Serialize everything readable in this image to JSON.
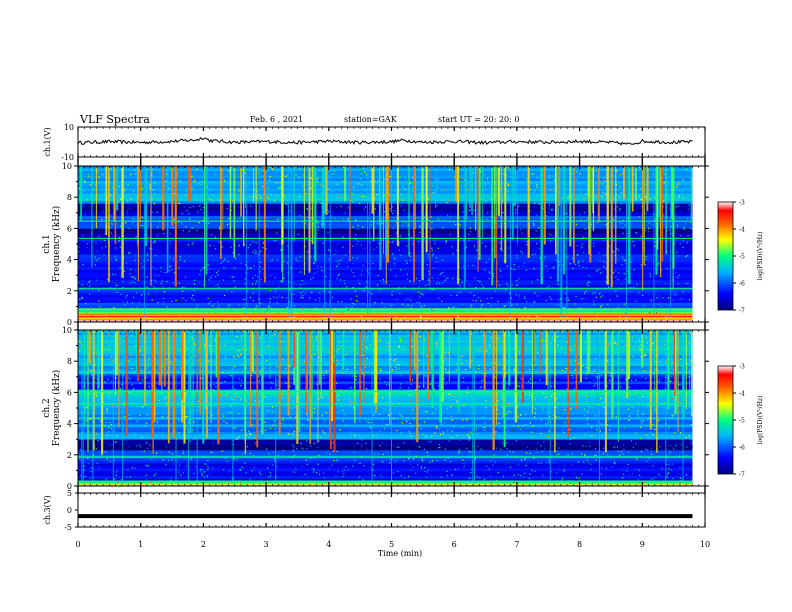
{
  "header": {
    "title": "VLF Spectra",
    "date": "Feb. 6 , 2021",
    "station": "station=GAK",
    "start": "start UT =  20: 20: 0"
  },
  "chart_data": [
    {
      "type": "line",
      "panel": "ch1-waveform",
      "ylabel": "ch.1(V)",
      "ylim": [
        -10,
        10
      ],
      "yticks": [
        "10",
        "-10"
      ],
      "xlim": [
        0,
        10
      ],
      "series": [
        {
          "x": [
            0,
            0.5,
            1,
            1.5,
            1.9,
            2.0,
            2.1,
            2.5,
            3,
            3.5,
            4,
            4.5,
            5,
            5.2,
            5.5,
            6,
            6.5,
            7,
            7.5,
            8,
            8.5,
            8.8,
            9,
            9.5,
            9.8
          ],
          "values": [
            -0.5,
            0.2,
            -0.3,
            0.4,
            1.5,
            3.0,
            1.0,
            -0.2,
            0.3,
            -0.4,
            0.5,
            -0.3,
            0.2,
            1.2,
            -0.2,
            0.4,
            -0.5,
            0.3,
            -0.2,
            0.4,
            -0.3,
            -1.5,
            0.5,
            -0.2,
            0.1
          ]
        }
      ]
    },
    {
      "type": "heatmap",
      "panel": "ch1-spectrogram",
      "ylabel_top": "ch.1",
      "ylabel": "Frequency (kHz)",
      "ylim": [
        0,
        10
      ],
      "yticks": [
        "0",
        "2",
        "4",
        "6",
        "8",
        "10"
      ],
      "xlim": [
        0,
        10
      ],
      "colorbar": {
        "label": "log(PSD)(V²/Hz)",
        "range": [
          -7,
          -3
        ],
        "ticks": [
          "-3",
          "-4",
          "-5",
          "-6",
          "-7"
        ]
      },
      "bands": [
        {
          "f": [
            0,
            0.4
          ],
          "level": -3.3
        },
        {
          "f": [
            0.4,
            0.9
          ],
          "level": -4.8
        },
        {
          "f": [
            0.9,
            2.2
          ],
          "level": -6.2
        },
        {
          "f": [
            2.2,
            5.3
          ],
          "level": -6.4
        },
        {
          "f": [
            5.3,
            6.0
          ],
          "level": -6.9
        },
        {
          "f": [
            6.0,
            6.8
          ],
          "level": -6.0
        },
        {
          "f": [
            6.8,
            7.6
          ],
          "level": -6.7
        },
        {
          "f": [
            7.6,
            10
          ],
          "level": -5.6
        }
      ],
      "lines_khz": [
        2.2,
        5.4,
        6.5
      ],
      "spheric_level": -5.0
    },
    {
      "type": "heatmap",
      "panel": "ch2-spectrogram",
      "ylabel_top": "ch.2",
      "ylabel": "Frequency (kHz)",
      "ylim": [
        0,
        10
      ],
      "yticks": [
        "0",
        "2",
        "4",
        "6",
        "8",
        "10"
      ],
      "xlim": [
        0,
        10
      ],
      "colorbar": {
        "label": "log(PSD)(V²/Hz)",
        "range": [
          -7,
          -3
        ],
        "ticks": [
          "-3",
          "-4",
          "-5",
          "-6",
          "-7"
        ]
      },
      "bands": [
        {
          "f": [
            0,
            0.3
          ],
          "level": -4.8
        },
        {
          "f": [
            0.3,
            1.6
          ],
          "level": -6.5
        },
        {
          "f": [
            1.6,
            2.3
          ],
          "level": -6.0
        },
        {
          "f": [
            2.3,
            3.0
          ],
          "level": -6.8
        },
        {
          "f": [
            3.0,
            5.2
          ],
          "level": -5.8
        },
        {
          "f": [
            5.2,
            6.2
          ],
          "level": -5.4
        },
        {
          "f": [
            6.2,
            7.2
          ],
          "level": -6.3
        },
        {
          "f": [
            7.2,
            10
          ],
          "level": -5.6
        }
      ],
      "lines_khz": [
        1.9,
        5.3,
        6.1
      ],
      "spheric_level": -4.8
    },
    {
      "type": "line",
      "panel": "ch3-waveform",
      "ylabel": "ch.3(V)",
      "ylim": [
        -5,
        5
      ],
      "yticks": [
        "5",
        "0",
        "-5"
      ],
      "xlim": [
        0,
        10
      ],
      "series": [
        {
          "x": [
            0,
            9.8
          ],
          "values": [
            -1.8,
            -1.8
          ]
        }
      ]
    }
  ],
  "xaxis": {
    "label": "Time (min)",
    "ticks": [
      "0",
      "1",
      "2",
      "3",
      "4",
      "5",
      "6",
      "7",
      "8",
      "9",
      "10"
    ]
  }
}
